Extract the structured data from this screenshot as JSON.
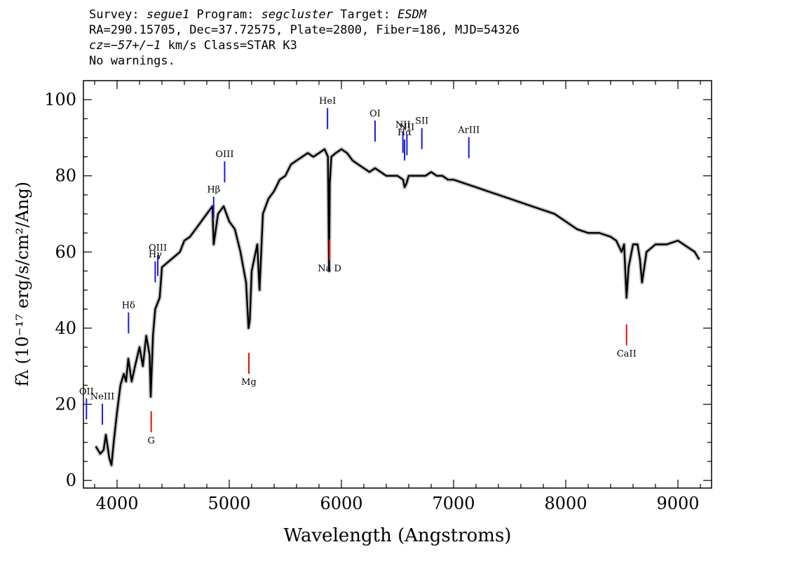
{
  "header": {
    "survey_label": "Survey: ",
    "survey": "segue1",
    "program_label": " Program: ",
    "program": "segcluster",
    "target_label": " Target: ",
    "target": "ESDM",
    "line2": "RA=290.15705, Dec=37.72575, Plate=2800, Fiber=186, MJD=54326",
    "cz_value": "cz=−57+/−1",
    "cz_rest": " km/s Class=STAR K3",
    "line4": "No warnings."
  },
  "chart_data": {
    "type": "line",
    "title": "",
    "xlabel": "Wavelength (Angstroms)",
    "ylabel": "fλ (10⁻¹⁷ erg/s/cm²/Ang)",
    "xlim": [
      3700,
      9300
    ],
    "ylim": [
      -2,
      105
    ],
    "x_ticks": [
      4000,
      5000,
      6000,
      7000,
      8000,
      9000
    ],
    "y_ticks": [
      0,
      20,
      40,
      60,
      80,
      100
    ],
    "grid": false,
    "series": [
      {
        "color": "#000000",
        "x": [
          3810,
          3850,
          3880,
          3900,
          3930,
          3950,
          3970,
          4000,
          4030,
          4060,
          4080,
          4100,
          4130,
          4160,
          4200,
          4230,
          4260,
          4290,
          4300,
          4320,
          4340,
          4380,
          4400,
          4440,
          4480,
          4520,
          4560,
          4600,
          4650,
          4700,
          4750,
          4800,
          4850,
          4861,
          4900,
          4950,
          5000,
          5050,
          5100,
          5150,
          5172,
          5183,
          5200,
          5250,
          5270,
          5300,
          5350,
          5400,
          5450,
          5500,
          5550,
          5600,
          5650,
          5700,
          5750,
          5800,
          5850,
          5880,
          5890,
          5896,
          5910,
          5950,
          6000,
          6050,
          6100,
          6150,
          6200,
          6250,
          6300,
          6350,
          6400,
          6450,
          6500,
          6550,
          6563,
          6580,
          6600,
          6650,
          6700,
          6750,
          6800,
          6850,
          6900,
          6950,
          7000,
          7100,
          7200,
          7300,
          7400,
          7500,
          7600,
          7700,
          7800,
          7900,
          8000,
          8100,
          8200,
          8300,
          8400,
          8450,
          8498,
          8520,
          8542,
          8560,
          8600,
          8640,
          8662,
          8680,
          8720,
          8800,
          8900,
          9000,
          9100,
          9150,
          9190
        ],
        "y": [
          9,
          7,
          8,
          12,
          6,
          4,
          10,
          18,
          25,
          28,
          26,
          32,
          26,
          30,
          35,
          30,
          38,
          33,
          22,
          38,
          45,
          48,
          56,
          57,
          58,
          59,
          60,
          63,
          64,
          66,
          68,
          70,
          72,
          62,
          70,
          72,
          68,
          66,
          60,
          52,
          40,
          42,
          55,
          62,
          50,
          70,
          74,
          76,
          79,
          80,
          83,
          84,
          85,
          86,
          85,
          86,
          87,
          85,
          55,
          78,
          85,
          86,
          87,
          86,
          84,
          83,
          82,
          81,
          82,
          81,
          80,
          80,
          80,
          79,
          77,
          78,
          80,
          80,
          80,
          80,
          81,
          80,
          80,
          79,
          79,
          78,
          77,
          76,
          75,
          74,
          73,
          72,
          71,
          70,
          68,
          66,
          65,
          65,
          64,
          63,
          60,
          62,
          48,
          56,
          62,
          62,
          58,
          52,
          60,
          62,
          62,
          63,
          61,
          60,
          58
        ]
      }
    ],
    "emission_lines": [
      {
        "label": "OII",
        "wavelength": 3727,
        "color": "#1a1adb"
      },
      {
        "label": "NeIII",
        "wavelength": 3869,
        "color": "#1a1adb"
      },
      {
        "label": "Hδ",
        "wavelength": 4102,
        "color": "#1a1adb"
      },
      {
        "label": "Hγ",
        "wavelength": 4340,
        "color": "#1a1adb"
      },
      {
        "label": "OIII",
        "wavelength": 4363,
        "color": "#1a1adb"
      },
      {
        "label": "Hβ",
        "wavelength": 4861,
        "color": "#1a1adb"
      },
      {
        "label": "OIII",
        "wavelength": 4959,
        "color": "#1a1adb"
      },
      {
        "label": "HeI",
        "wavelength": 5876,
        "color": "#1a1adb"
      },
      {
        "label": "OI",
        "wavelength": 6300,
        "color": "#1a1adb"
      },
      {
        "label": "NII",
        "wavelength": 6548,
        "color": "#1a1adb"
      },
      {
        "label": "Hα",
        "wavelength": 6563,
        "color": "#1a1adb"
      },
      {
        "label": "NII",
        "wavelength": 6584,
        "color": "#1a1adb"
      },
      {
        "label": "SII",
        "wavelength": 6717,
        "color": "#1a1adb"
      },
      {
        "label": "ArIII",
        "wavelength": 7136,
        "color": "#1a1adb"
      }
    ],
    "absorption_lines": [
      {
        "label": "G",
        "wavelength": 4304,
        "color": "#e01010"
      },
      {
        "label": "Mg",
        "wavelength": 5175,
        "color": "#e01010"
      },
      {
        "label": "Na D",
        "wavelength": 5894,
        "color": "#e01010"
      },
      {
        "label": "CaII",
        "wavelength": 8542,
        "color": "#e01010"
      }
    ]
  }
}
